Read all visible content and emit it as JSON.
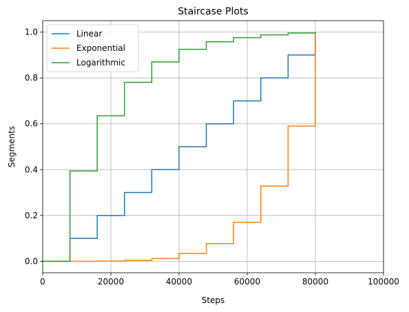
{
  "chart_data": {
    "type": "line",
    "step": "post",
    "title": "Staircase Plots",
    "xlabel": "Steps",
    "ylabel": "Segments",
    "xlim": [
      0,
      100000
    ],
    "ylim": [
      -0.05,
      1.05
    ],
    "xticks": [
      0,
      20000,
      40000,
      60000,
      80000,
      100000
    ],
    "yticks": [
      0.0,
      0.2,
      0.4,
      0.6,
      0.8,
      1.0
    ],
    "xtick_labels": [
      "0",
      "20000",
      "40000",
      "60000",
      "80000",
      "100000"
    ],
    "ytick_labels": [
      "0.0",
      "0.2",
      "0.4",
      "0.6",
      "0.8",
      "1.0"
    ],
    "grid": true,
    "legend_position": "top-left",
    "x": [
      0,
      8000,
      16000,
      24000,
      32000,
      40000,
      48000,
      56000,
      64000,
      72000,
      80000
    ],
    "series": [
      {
        "name": "Linear",
        "color": "#1f77b4",
        "values": [
          0.0,
          0.1,
          0.2,
          0.3,
          0.4,
          0.5,
          0.6,
          0.7,
          0.8,
          0.9,
          1.0
        ]
      },
      {
        "name": "Exponential",
        "color": "#ff7f0e",
        "values": [
          0.0,
          0.0,
          0.001,
          0.004,
          0.012,
          0.034,
          0.077,
          0.17,
          0.328,
          0.59,
          1.0
        ]
      },
      {
        "name": "Logarithmic",
        "color": "#2ca02c",
        "values": [
          0.0,
          0.394,
          0.635,
          0.781,
          0.87,
          0.925,
          0.958,
          0.976,
          0.988,
          0.996,
          1.0
        ]
      }
    ]
  }
}
